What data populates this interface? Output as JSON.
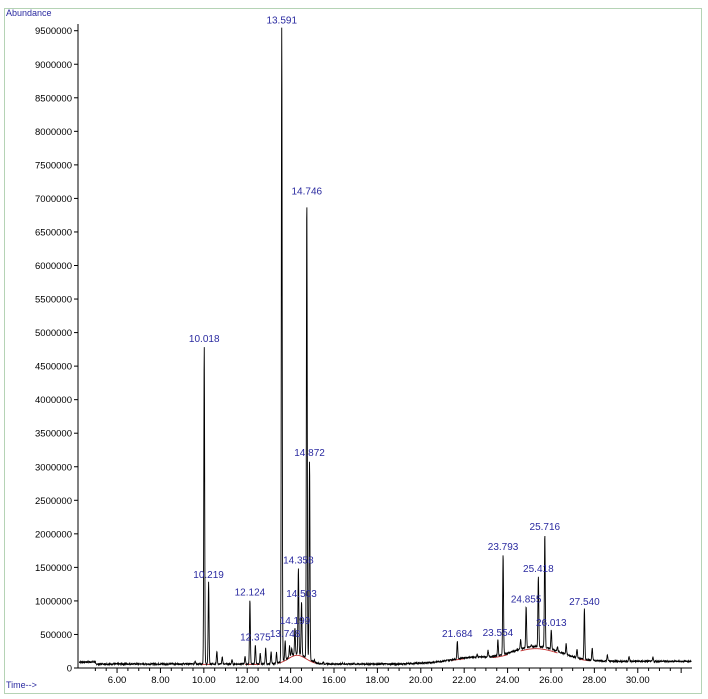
{
  "chart_data": {
    "type": "line",
    "ylabel": "Abundance",
    "xlabel": "Time-->",
    "xlim": [
      4.2,
      32.5
    ],
    "ylim": [
      0,
      9600000
    ],
    "x_ticks": [
      6,
      8,
      10,
      12,
      14,
      16,
      18,
      20,
      22,
      24,
      26,
      28,
      30
    ],
    "x_tick_labels": [
      "6.00",
      "8.00",
      "10.00",
      "12.00",
      "14.00",
      "16.00",
      "18.00",
      "20.00",
      "22.00",
      "24.00",
      "26.00",
      "28.00",
      "30.00"
    ],
    "y_ticks": [
      0,
      500000,
      1000000,
      1500000,
      2000000,
      2500000,
      3000000,
      3500000,
      4000000,
      4500000,
      5000000,
      5500000,
      6000000,
      6500000,
      7000000,
      7500000,
      8000000,
      8500000,
      9000000,
      9500000
    ],
    "y_tick_labels": [
      "0",
      "500000",
      "1000000",
      "1500000",
      "2000000",
      "2500000",
      "3000000",
      "3500000",
      "4000000",
      "4500000",
      "5000000",
      "5500000",
      "6000000",
      "6500000",
      "7000000",
      "7500000",
      "8000000",
      "8500000",
      "9000000",
      "9500000"
    ],
    "colors": {
      "trace": "#000000",
      "baseline": "#c03030",
      "label": "#2a2aa0",
      "axis": "#000000"
    },
    "peaks": [
      {
        "label": "10.018",
        "x": 10.018,
        "y": 4800000
      },
      {
        "label": "10.219",
        "x": 10.219,
        "y": 1280000
      },
      {
        "label": "12.124",
        "x": 12.124,
        "y": 1020000
      },
      {
        "label": "12.375",
        "x": 12.375,
        "y": 350000
      },
      {
        "label": "13.591",
        "x": 13.591,
        "y": 9550000
      },
      {
        "label": "13.748",
        "x": 13.748,
        "y": 400000
      },
      {
        "label": "14.199",
        "x": 14.199,
        "y": 600000
      },
      {
        "label": "14.358",
        "x": 14.358,
        "y": 1500000
      },
      {
        "label": "14.503",
        "x": 14.503,
        "y": 1000000
      },
      {
        "label": "14.746",
        "x": 14.746,
        "y": 7000000
      },
      {
        "label": "14.872",
        "x": 14.872,
        "y": 3100000
      },
      {
        "label": "21.684",
        "x": 21.684,
        "y": 400000
      },
      {
        "label": "23.554",
        "x": 23.554,
        "y": 420000
      },
      {
        "label": "23.793",
        "x": 23.793,
        "y": 1700000
      },
      {
        "label": "24.855",
        "x": 24.855,
        "y": 920000
      },
      {
        "label": "25.418",
        "x": 25.418,
        "y": 1370000
      },
      {
        "label": "25.716",
        "x": 25.716,
        "y": 2000000
      },
      {
        "label": "26.013",
        "x": 26.013,
        "y": 570000
      },
      {
        "label": "27.540",
        "x": 27.54,
        "y": 880000
      }
    ],
    "minor_peaks": [
      {
        "x": 9.6,
        "y": 110000
      },
      {
        "x": 10.6,
        "y": 250000
      },
      {
        "x": 10.85,
        "y": 160000
      },
      {
        "x": 11.3,
        "y": 120000
      },
      {
        "x": 11.9,
        "y": 180000
      },
      {
        "x": 12.6,
        "y": 220000
      },
      {
        "x": 12.85,
        "y": 290000
      },
      {
        "x": 13.1,
        "y": 240000
      },
      {
        "x": 13.35,
        "y": 230000
      },
      {
        "x": 13.95,
        "y": 330000
      },
      {
        "x": 14.05,
        "y": 300000
      },
      {
        "x": 15.1,
        "y": 120000
      },
      {
        "x": 15.5,
        "y": 90000
      },
      {
        "x": 16.4,
        "y": 70000
      },
      {
        "x": 22.6,
        "y": 200000
      },
      {
        "x": 23.1,
        "y": 260000
      },
      {
        "x": 24.6,
        "y": 420000
      },
      {
        "x": 25.1,
        "y": 350000
      },
      {
        "x": 26.3,
        "y": 320000
      },
      {
        "x": 26.7,
        "y": 360000
      },
      {
        "x": 27.2,
        "y": 280000
      },
      {
        "x": 27.9,
        "y": 300000
      },
      {
        "x": 28.6,
        "y": 200000
      },
      {
        "x": 29.6,
        "y": 170000
      },
      {
        "x": 30.7,
        "y": 160000
      }
    ]
  }
}
